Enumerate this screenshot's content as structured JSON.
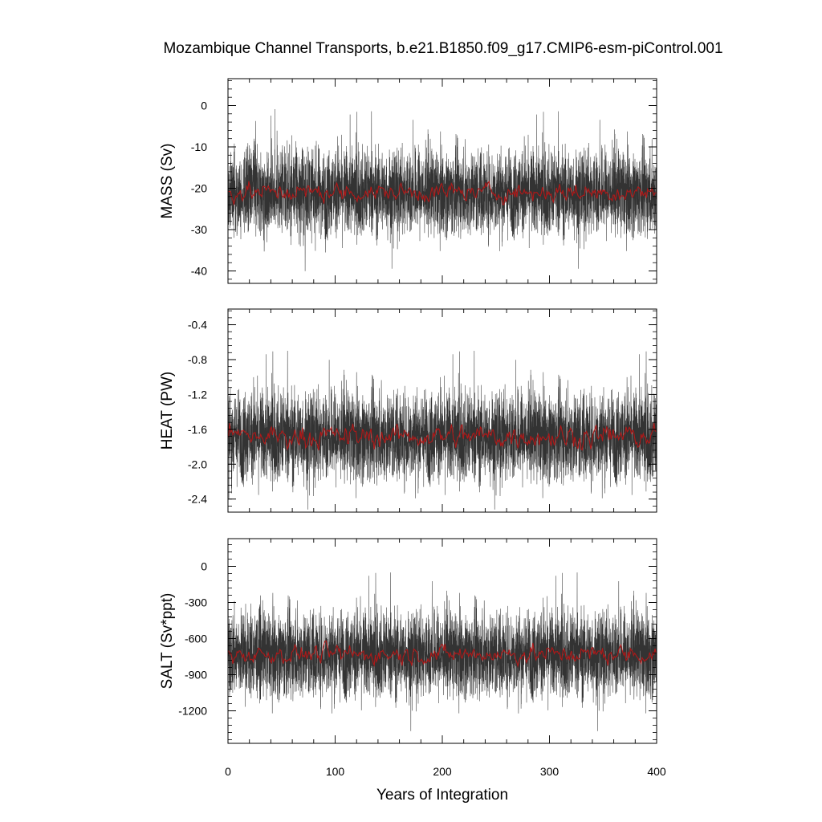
{
  "chart_data": {
    "type": "line",
    "title": "Mozambique Channel Transports, b.e21.B1850.f09_g17.CMIP6-esm-piControl.001",
    "xlabel": "Years of Integration",
    "xlim": [
      0,
      400
    ],
    "xticks": [
      0,
      100,
      200,
      300,
      400
    ],
    "colors": {
      "raw": "#000000",
      "smoothed": "#b01818"
    },
    "panels": [
      {
        "ylabel": "MASS (Sv)",
        "ylim": [
          -43,
          6.5
        ],
        "yticks": [
          0,
          -10,
          -20,
          -30,
          -40
        ],
        "series": [
          {
            "kind": "monthly",
            "mean": -21,
            "spread": 5.2,
            "min": -42,
            "max": 6.5
          },
          {
            "kind": "annual-smoothed",
            "mean": -21,
            "range": [
              -25,
              -16
            ]
          }
        ]
      },
      {
        "ylabel": "HEAT (PW)",
        "ylim": [
          -2.55,
          -0.22
        ],
        "yticks": [
          -0.4,
          -0.8,
          -1.2,
          -1.6,
          -2.0,
          -2.4
        ],
        "series": [
          {
            "kind": "monthly",
            "mean": -1.68,
            "spread": 0.26,
            "min": -2.52,
            "max": -0.22
          },
          {
            "kind": "annual-smoothed",
            "mean": -1.68,
            "range": [
              -1.9,
              -1.35
            ]
          }
        ]
      },
      {
        "ylabel": "SALT (Sv*ppt)",
        "ylim": [
          -1470,
          230
        ],
        "yticks": [
          0,
          -300,
          -600,
          -900,
          -1200
        ],
        "series": [
          {
            "kind": "monthly",
            "mean": -730,
            "spread": 180,
            "min": -1460,
            "max": 230
          },
          {
            "kind": "annual-smoothed",
            "mean": -730,
            "range": [
              -880,
              -570
            ]
          }
        ]
      }
    ]
  }
}
